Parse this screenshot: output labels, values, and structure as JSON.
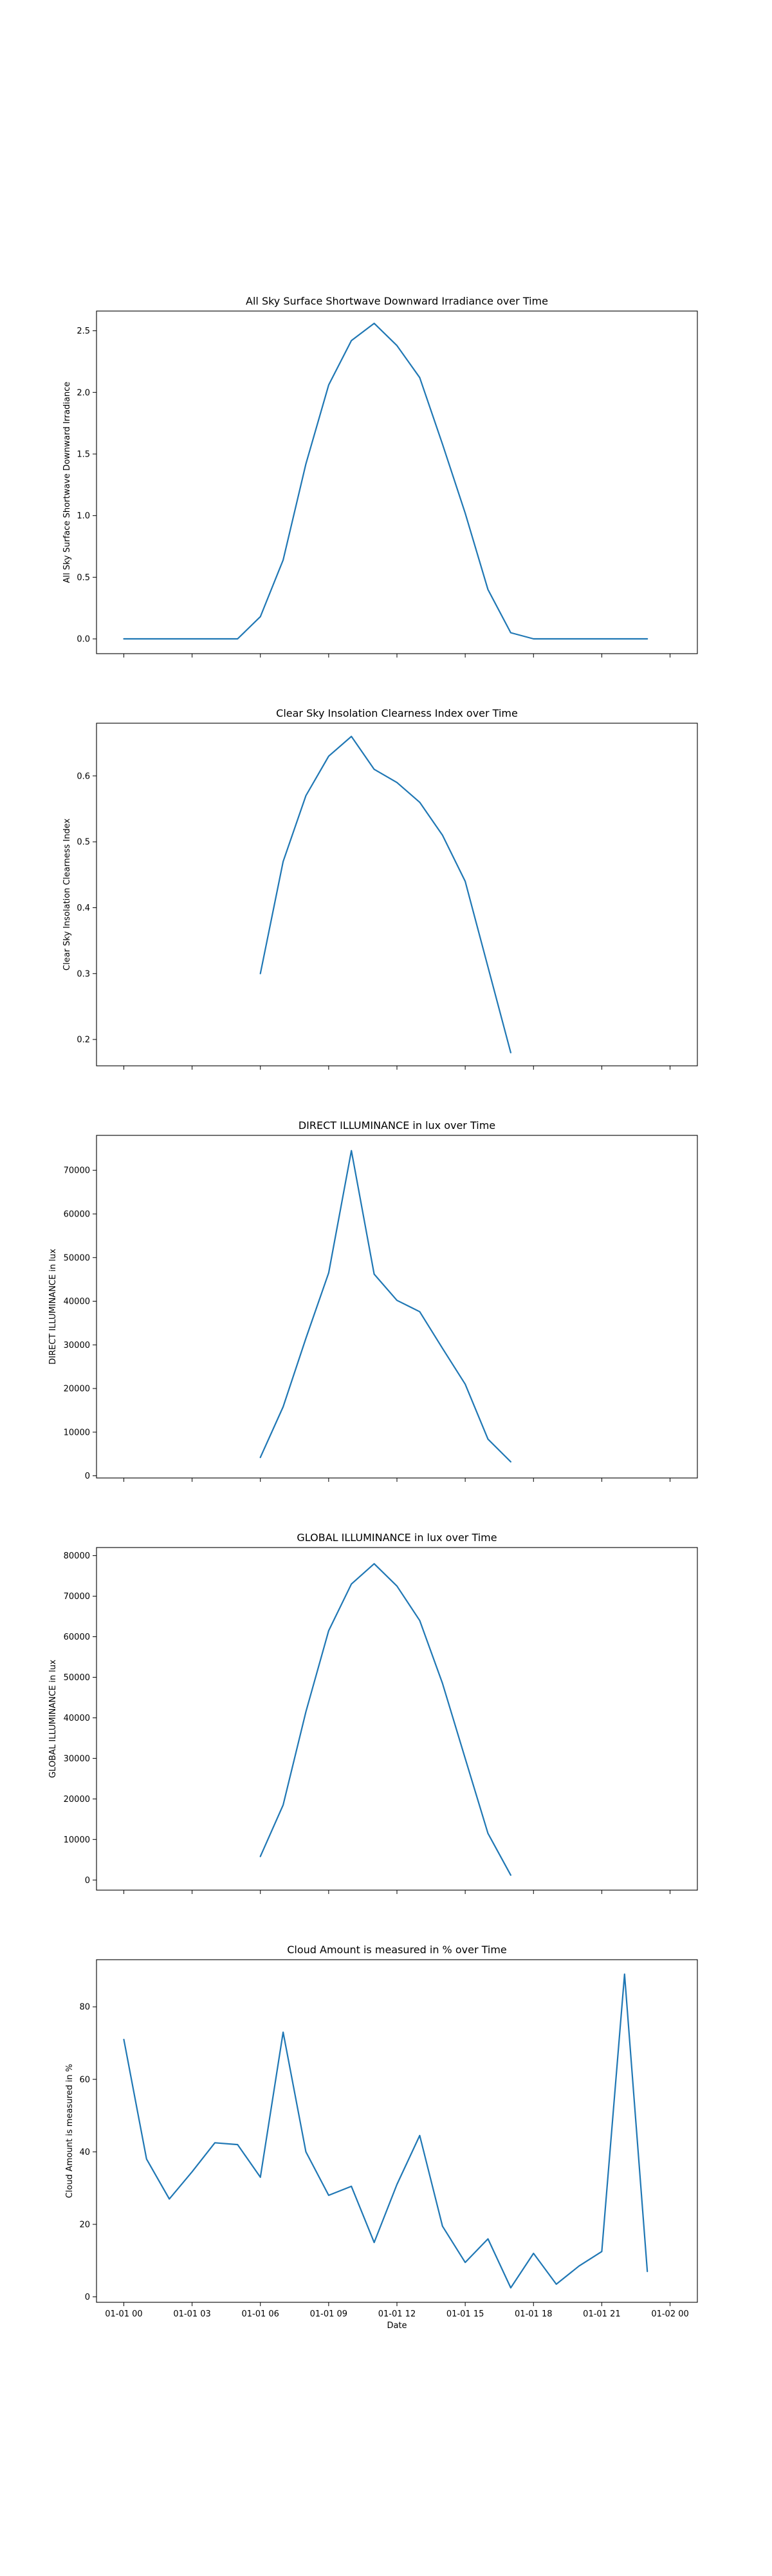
{
  "figure": {
    "xlabel": "Date",
    "x_tick_labels": [
      "01-01 00",
      "01-01 03",
      "01-01 06",
      "01-01 09",
      "01-01 12",
      "01-01 15",
      "01-01 18",
      "01-01 21",
      "01-02 00"
    ],
    "line_color": "#1f77b4"
  },
  "chart_data": [
    {
      "type": "line",
      "title": "All Sky Surface Shortwave Downward Irradiance over Time",
      "ylabel": "All Sky Surface Shortwave Downward Irradiance",
      "xlabel": "",
      "x": [
        "01-01 00",
        "01-01 01",
        "01-01 02",
        "01-01 03",
        "01-01 04",
        "01-01 05",
        "01-01 06",
        "01-01 07",
        "01-01 08",
        "01-01 09",
        "01-01 10",
        "01-01 11",
        "01-01 12",
        "01-01 13",
        "01-01 14",
        "01-01 15",
        "01-01 16",
        "01-01 17",
        "01-01 18",
        "01-01 19",
        "01-01 20",
        "01-01 21",
        "01-01 22",
        "01-01 23"
      ],
      "values": [
        0,
        0,
        0,
        0,
        0,
        0,
        0.18,
        0.64,
        1.42,
        2.06,
        2.42,
        2.56,
        2.38,
        2.12,
        1.58,
        1.02,
        0.4,
        0.05,
        0,
        0,
        0,
        0,
        0,
        0
      ],
      "ylim": [
        -0.12,
        2.66
      ],
      "yticks": [
        0.0,
        0.5,
        1.0,
        1.5,
        2.0,
        2.5
      ],
      "ytick_labels": [
        "0.0",
        "0.5",
        "1.0",
        "1.5",
        "2.0",
        "2.5"
      ],
      "show_xtick_labels": false
    },
    {
      "type": "line",
      "title": "Clear Sky Insolation Clearness Index over Time",
      "ylabel": "Clear Sky Insolation Clearness Index",
      "xlabel": "",
      "x": [
        "01-01 06",
        "01-01 07",
        "01-01 08",
        "01-01 09",
        "01-01 10",
        "01-01 11",
        "01-01 12",
        "01-01 13",
        "01-01 14",
        "01-01 15",
        "01-01 16",
        "01-01 17"
      ],
      "values": [
        0.3,
        0.47,
        0.57,
        0.63,
        0.66,
        0.61,
        0.59,
        0.56,
        0.51,
        0.44,
        0.31,
        0.18
      ],
      "ylim": [
        0.16,
        0.68
      ],
      "yticks": [
        0.2,
        0.3,
        0.4,
        0.5,
        0.6
      ],
      "ytick_labels": [
        "0.2",
        "0.3",
        "0.4",
        "0.5",
        "0.6"
      ],
      "show_xtick_labels": false
    },
    {
      "type": "line",
      "title": "DIRECT ILLUMINANCE in lux over Time",
      "ylabel": "DIRECT ILLUMINANCE in lux",
      "xlabel": "",
      "x": [
        "01-01 06",
        "01-01 07",
        "01-01 08",
        "01-01 09",
        "01-01 10",
        "01-01 11",
        "01-01 12",
        "01-01 13",
        "01-01 14",
        "01-01 15",
        "01-01 16",
        "01-01 17"
      ],
      "values": [
        4200,
        15800,
        31500,
        46500,
        74500,
        46200,
        40200,
        37600,
        29200,
        21000,
        8400,
        3200
      ],
      "ylim": [
        -500,
        78000
      ],
      "yticks": [
        0,
        10000,
        20000,
        30000,
        40000,
        50000,
        60000,
        70000
      ],
      "ytick_labels": [
        "0",
        "10000",
        "20000",
        "30000",
        "40000",
        "50000",
        "60000",
        "70000"
      ],
      "show_xtick_labels": false
    },
    {
      "type": "line",
      "title": "GLOBAL ILLUMINANCE in lux over Time",
      "ylabel": "GLOBAL ILLUMINANCE in lux",
      "xlabel": "",
      "x": [
        "01-01 06",
        "01-01 07",
        "01-01 08",
        "01-01 09",
        "01-01 10",
        "01-01 11",
        "01-01 12",
        "01-01 13",
        "01-01 14",
        "01-01 15",
        "01-01 16",
        "01-01 17"
      ],
      "values": [
        5800,
        18500,
        41500,
        61500,
        73000,
        78000,
        72500,
        64000,
        48500,
        30000,
        11500,
        1200
      ],
      "ylim": [
        -2500,
        82000
      ],
      "yticks": [
        0,
        10000,
        20000,
        30000,
        40000,
        50000,
        60000,
        70000,
        80000
      ],
      "ytick_labels": [
        "0",
        "10000",
        "20000",
        "30000",
        "40000",
        "50000",
        "60000",
        "70000",
        "80000"
      ],
      "show_xtick_labels": false
    },
    {
      "type": "line",
      "title": "Cloud Amount is measured in % over Time",
      "ylabel": "Cloud Amount is measured in %",
      "xlabel": "Date",
      "x": [
        "01-01 00",
        "01-01 01",
        "01-01 02",
        "01-01 03",
        "01-01 04",
        "01-01 05",
        "01-01 06",
        "01-01 07",
        "01-01 08",
        "01-01 09",
        "01-01 10",
        "01-01 11",
        "01-01 12",
        "01-01 13",
        "01-01 14",
        "01-01 15",
        "01-01 16",
        "01-01 17",
        "01-01 18",
        "01-01 19",
        "01-01 20",
        "01-01 21",
        "01-01 22",
        "01-01 23"
      ],
      "values": [
        71,
        38,
        27,
        34.5,
        42.5,
        42,
        33,
        73,
        40,
        28,
        30.5,
        15,
        31,
        44.5,
        19.5,
        9.5,
        16,
        2.5,
        12,
        3.5,
        8.5,
        12.5,
        89,
        7
      ],
      "ylim": [
        -1.5,
        93
      ],
      "yticks": [
        0,
        20,
        40,
        60,
        80
      ],
      "ytick_labels": [
        "0",
        "20",
        "40",
        "60",
        "80"
      ],
      "show_xtick_labels": true
    }
  ]
}
